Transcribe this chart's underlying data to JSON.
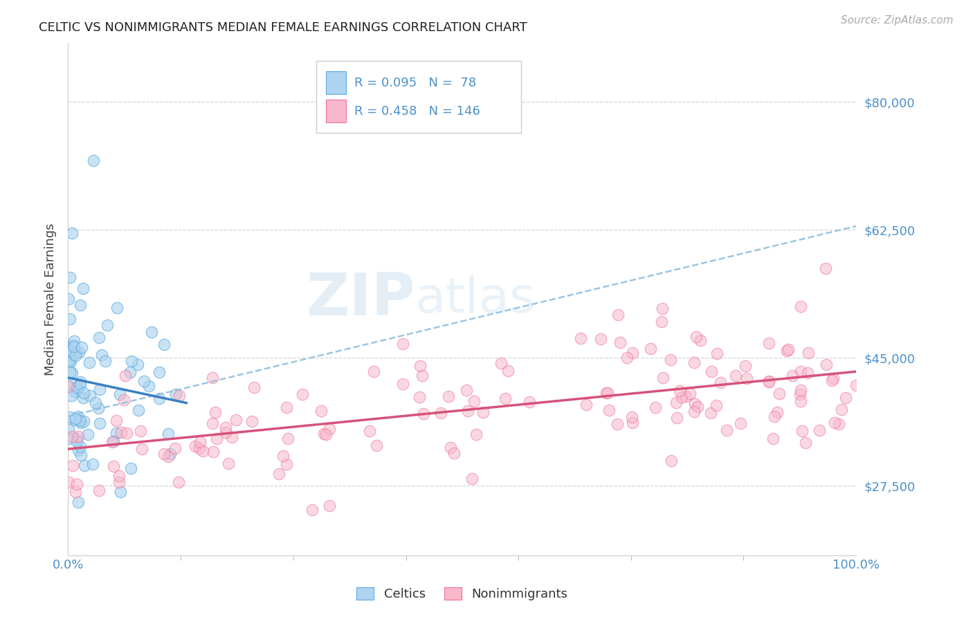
{
  "title": "CELTIC VS NONIMMIGRANTS MEDIAN FEMALE EARNINGS CORRELATION CHART",
  "source": "Source: ZipAtlas.com",
  "ylabel": "Median Female Earnings",
  "xlim": [
    0.0,
    100.0
  ],
  "ylim": [
    18000,
    88000
  ],
  "yticks": [
    27500,
    45000,
    62500,
    80000
  ],
  "ytick_labels": [
    "$27,500",
    "$45,000",
    "$62,500",
    "$80,000"
  ],
  "xtick_labels": [
    "0.0%",
    "100.0%"
  ],
  "celtics_color": "#aed4ef",
  "celtics_edge_color": "#5aaae0",
  "nonimmigrants_color": "#f7b8cb",
  "nonimmigrants_edge_color": "#f07098",
  "trend_celtics_color": "#3a7fc1",
  "trend_nonimmigrants_color": "#d6527a",
  "dashed_line_color": "#90bfdf",
  "R_celtics": 0.095,
  "N_celtics": 78,
  "R_nonimmigrants": 0.458,
  "N_nonimmigrants": 146,
  "watermark_zip": "ZIP",
  "watermark_atlas": "atlas",
  "title_color": "#222222",
  "axis_label_color": "#444444",
  "tick_label_color": "#4e90c8",
  "grid_color": "#cccccc",
  "background_color": "#ffffff",
  "legend_text_color": "#4e90c8"
}
